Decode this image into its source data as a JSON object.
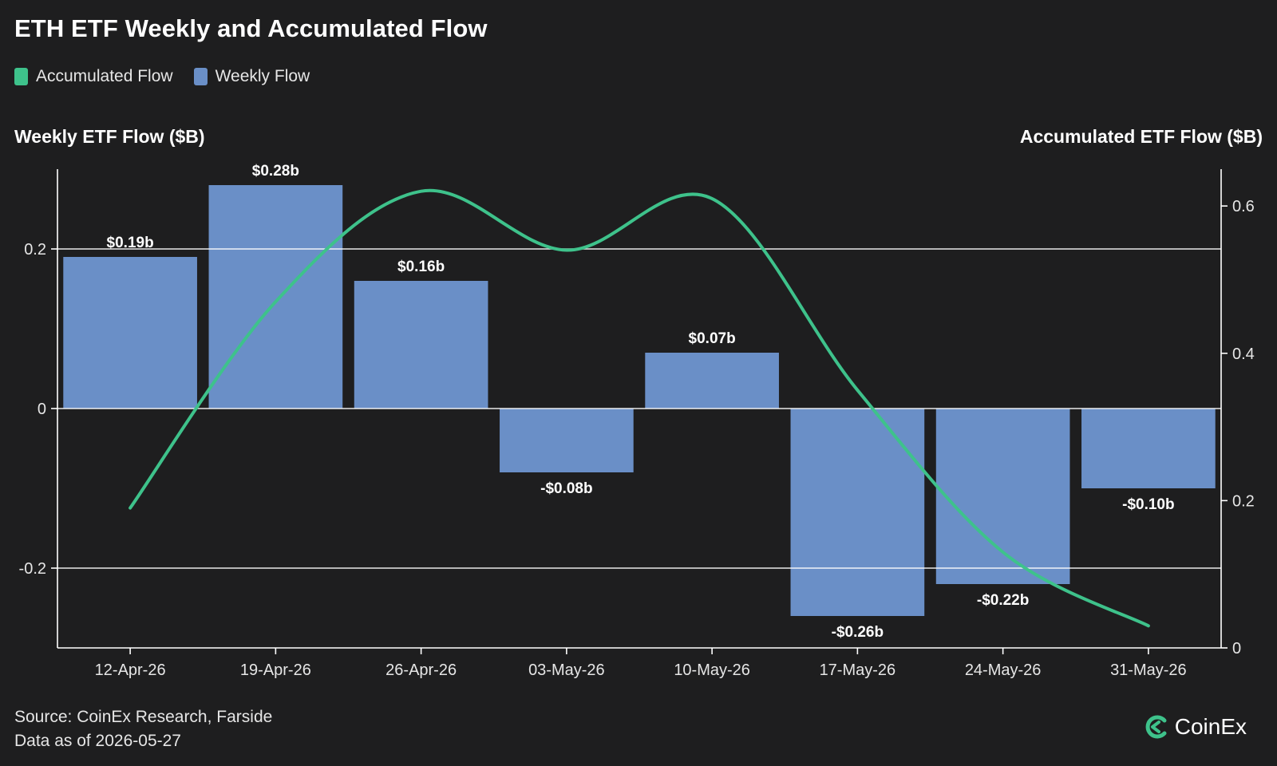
{
  "title": "ETH ETF Weekly and Accumulated Flow",
  "legend": [
    {
      "label": "Accumulated Flow",
      "color": "#3ec28b"
    },
    {
      "label": "Weekly Flow",
      "color": "#6a8fc7"
    }
  ],
  "axes": {
    "left_title": "Weekly ETF Flow ($B)",
    "right_title": "Accumulated ETF Flow ($B)"
  },
  "footer": {
    "source": "Source: CoinEx Research, Farside",
    "date": "Data as of 2026-05-27"
  },
  "brand": {
    "name": "CoinEx",
    "icon": "coinex-logo-icon"
  },
  "chart_data": {
    "type": "bar",
    "categories": [
      "12-Apr-26",
      "19-Apr-26",
      "26-Apr-26",
      "03-May-26",
      "10-May-26",
      "17-May-26",
      "24-May-26",
      "31-May-26"
    ],
    "series": [
      {
        "name": "Weekly Flow",
        "axis": "left",
        "values": [
          0.19,
          0.28,
          0.16,
          -0.08,
          0.07,
          -0.26,
          -0.22,
          -0.1
        ],
        "labels": [
          "$0.19b",
          "$0.28b",
          "$0.16b",
          "-$0.08b",
          "$0.07b",
          "-$0.26b",
          "-$0.22b",
          "-$0.10b"
        ],
        "color": "#6a8fc7"
      },
      {
        "name": "Accumulated Flow",
        "axis": "right",
        "type": "line",
        "values": [
          0.19,
          0.47,
          0.62,
          0.54,
          0.61,
          0.35,
          0.13,
          0.03
        ],
        "color": "#3ec28b"
      }
    ],
    "left_axis": {
      "ylim": [
        -0.3,
        0.3
      ],
      "ticks": [
        -0.2,
        0,
        0.2
      ],
      "tick_labels": [
        "-0.2",
        "0",
        "0.2"
      ]
    },
    "right_axis": {
      "ylim": [
        0,
        0.65
      ],
      "ticks": [
        0,
        0.2,
        0.4,
        0.6
      ],
      "tick_labels": [
        "0",
        "0.2",
        "0.4",
        "0.6"
      ]
    },
    "gridlines_at_left": [
      -0.2,
      0,
      0.2
    ],
    "grid": true
  }
}
